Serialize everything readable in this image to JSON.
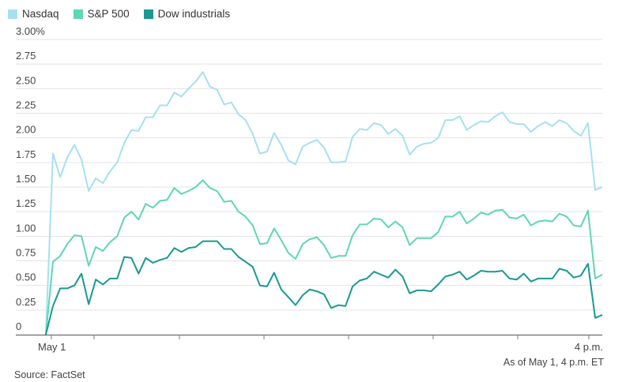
{
  "chart_data": {
    "type": "line",
    "x_start_label": "May 1",
    "x_end_label": "4 p.m.",
    "ylim": [
      0,
      3.0
    ],
    "yticks": [
      {
        "value": 0,
        "label": "0"
      },
      {
        "value": 0.25,
        "label": "0.25"
      },
      {
        "value": 0.5,
        "label": "0.50"
      },
      {
        "value": 0.75,
        "label": "0.75"
      },
      {
        "value": 1.0,
        "label": "1.00"
      },
      {
        "value": 1.25,
        "label": "1.25"
      },
      {
        "value": 1.5,
        "label": "1.50"
      },
      {
        "value": 1.75,
        "label": "1.75"
      },
      {
        "value": 2.0,
        "label": "2.00"
      },
      {
        "value": 2.25,
        "label": "2.25"
      },
      {
        "value": 2.5,
        "label": "2.50"
      },
      {
        "value": 2.75,
        "label": "2.75"
      },
      {
        "value": 3.0,
        "label": "3.00%"
      }
    ],
    "grid": true,
    "legend_position": "top-left",
    "series": [
      {
        "name": "Nasdaq",
        "color": "#a6e0f0",
        "values": [
          0,
          1.84,
          1.6,
          1.8,
          1.93,
          1.78,
          1.46,
          1.59,
          1.54,
          1.66,
          1.75,
          1.95,
          2.08,
          2.07,
          2.21,
          2.21,
          2.33,
          2.33,
          2.46,
          2.42,
          2.5,
          2.57,
          2.67,
          2.52,
          2.49,
          2.34,
          2.36,
          2.24,
          2.18,
          2.04,
          1.84,
          1.86,
          2.05,
          1.93,
          1.77,
          1.73,
          1.91,
          1.95,
          1.98,
          1.9,
          1.75,
          1.75,
          1.76,
          2.01,
          2.09,
          2.08,
          2.15,
          2.13,
          2.04,
          2.09,
          2.02,
          1.83,
          1.91,
          1.94,
          1.95,
          2.0,
          2.18,
          2.18,
          2.22,
          2.08,
          2.13,
          2.17,
          2.16,
          2.22,
          2.26,
          2.16,
          2.14,
          2.14,
          2.06,
          2.12,
          2.16,
          2.12,
          2.18,
          2.15,
          2.07,
          2.02,
          2.15,
          1.47,
          1.5
        ]
      },
      {
        "name": "S&P 500",
        "color": "#5fd6b4",
        "values": [
          0,
          0.74,
          0.8,
          0.92,
          1.01,
          1.0,
          0.7,
          0.89,
          0.85,
          0.94,
          1.0,
          1.19,
          1.25,
          1.17,
          1.33,
          1.29,
          1.36,
          1.37,
          1.49,
          1.43,
          1.46,
          1.5,
          1.57,
          1.49,
          1.46,
          1.35,
          1.36,
          1.25,
          1.2,
          1.11,
          0.92,
          0.93,
          1.08,
          0.96,
          0.83,
          0.77,
          0.92,
          0.97,
          0.99,
          0.91,
          0.78,
          0.8,
          0.8,
          1.01,
          1.12,
          1.12,
          1.18,
          1.17,
          1.09,
          1.15,
          1.09,
          0.91,
          0.98,
          0.98,
          0.98,
          1.04,
          1.2,
          1.2,
          1.25,
          1.13,
          1.18,
          1.24,
          1.22,
          1.26,
          1.27,
          1.19,
          1.18,
          1.22,
          1.11,
          1.15,
          1.16,
          1.15,
          1.23,
          1.2,
          1.11,
          1.1,
          1.26,
          0.57,
          0.61
        ]
      },
      {
        "name": "Dow industrials",
        "color": "#1a9993",
        "values": [
          0,
          0.29,
          0.47,
          0.47,
          0.5,
          0.62,
          0.31,
          0.56,
          0.51,
          0.57,
          0.57,
          0.79,
          0.78,
          0.62,
          0.78,
          0.73,
          0.76,
          0.78,
          0.88,
          0.84,
          0.88,
          0.89,
          0.95,
          0.95,
          0.95,
          0.87,
          0.87,
          0.79,
          0.74,
          0.69,
          0.5,
          0.49,
          0.63,
          0.46,
          0.38,
          0.3,
          0.4,
          0.46,
          0.44,
          0.41,
          0.27,
          0.3,
          0.29,
          0.49,
          0.55,
          0.57,
          0.64,
          0.61,
          0.58,
          0.66,
          0.59,
          0.42,
          0.45,
          0.45,
          0.44,
          0.51,
          0.59,
          0.61,
          0.64,
          0.56,
          0.6,
          0.65,
          0.64,
          0.64,
          0.65,
          0.57,
          0.56,
          0.62,
          0.54,
          0.57,
          0.57,
          0.57,
          0.67,
          0.65,
          0.58,
          0.6,
          0.72,
          0.17,
          0.2
        ]
      }
    ]
  },
  "footer": {
    "note": "As of May 1, 4 p.m. ET",
    "source": "Source: FactSet"
  }
}
